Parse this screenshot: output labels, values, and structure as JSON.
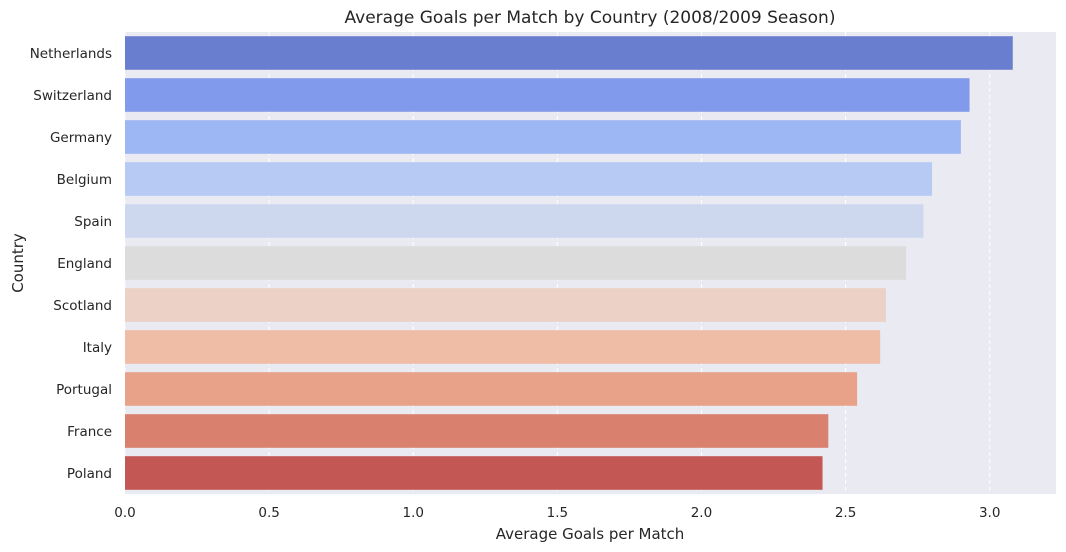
{
  "chart_data": {
    "type": "bar",
    "orientation": "horizontal",
    "title": "Average Goals per Match by Country (2008/2009 Season)",
    "xlabel": "Average Goals per Match",
    "ylabel": "Country",
    "categories": [
      "Netherlands",
      "Switzerland",
      "Germany",
      "Belgium",
      "Spain",
      "England",
      "Scotland",
      "Italy",
      "Portugal",
      "France",
      "Poland"
    ],
    "values": [
      3.08,
      2.93,
      2.9,
      2.8,
      2.77,
      2.71,
      2.64,
      2.62,
      2.54,
      2.44,
      2.42
    ],
    "colors": [
      "#6a7ed0",
      "#829aeb",
      "#9db6f4",
      "#b6caf4",
      "#cdd8ef",
      "#dcdcdc",
      "#ebd1c6",
      "#efbca5",
      "#e8a289",
      "#d9806e",
      "#c25753"
    ],
    "xlim": [
      0,
      3.23
    ],
    "xticks": [
      0.0,
      0.5,
      1.0,
      1.5,
      2.0,
      2.5,
      3.0
    ],
    "xtick_labels": [
      "0.0",
      "0.5",
      "1.0",
      "1.5",
      "2.0",
      "2.5",
      "3.0"
    ],
    "grid": true,
    "background": "#eaeaf2"
  }
}
